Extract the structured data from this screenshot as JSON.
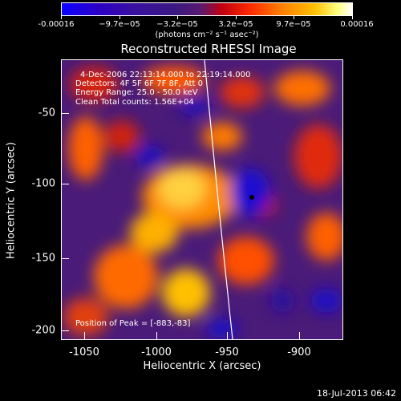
{
  "colorbar": {
    "labels": [
      "-0.00016",
      "−9.7e−05",
      "−3.2e−05",
      "3.2e−05",
      "9.7e−05",
      "0.00016"
    ],
    "unit": "(photons cm⁻² s⁻¹ asec⁻²)"
  },
  "title": "Reconstructed RHESSI Image",
  "info": {
    "time_range": "4-Dec-2006 22:13:14.000 to 22:19:14.000",
    "detectors": "Detectors: 4F 5F 6F 7F 8F, Att 0",
    "energy": "Energy Range: 25.0 - 50.0 keV",
    "algorithm": "Clean     Total counts: 1.56E+04"
  },
  "peak": "Position of Peak = [-883,-83]",
  "axes": {
    "x_title": "Heliocentric X (arcsec)",
    "y_title": "Heliocentric Y (arcsec)",
    "x_ticks": [
      "-1050",
      "-1000",
      "-950",
      "-900"
    ],
    "y_ticks": [
      "-50",
      "-100",
      "-150",
      "-200"
    ]
  },
  "footer": {
    "date": "18-Jul-2013 06:42"
  },
  "colors": {
    "background": "#000000",
    "limb": "#ffffff",
    "peak_marker": "#000000"
  }
}
